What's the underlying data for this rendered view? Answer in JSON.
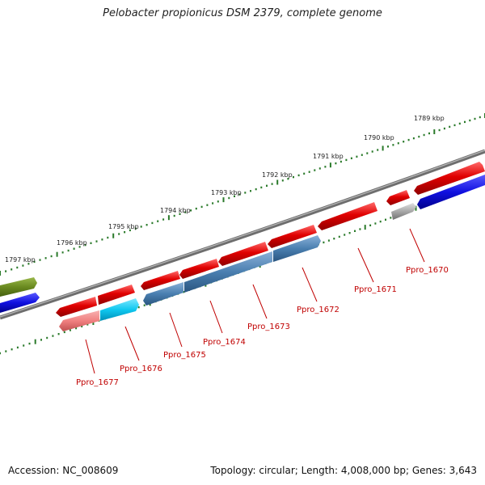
{
  "title": "Pelobacter propionicus DSM 2379, complete genome",
  "footer": {
    "accession": "Accession: NC_008609",
    "summary": "Topology: circular; Length: 4,008,000 bp; Genes: 3,643"
  },
  "colors": {
    "forward_gene": "#e00000",
    "forward_gene_pale": "#f08080",
    "reverse_dark_blue": "#1010e0",
    "reverse_steel": "#4a7fb0",
    "reverse_cyan": "#10c8f0",
    "olive": "#6a8a20",
    "gray": "#a8a8a8",
    "backbone": "#777777",
    "scale": "#2a7a2a",
    "label_red": "#c00000"
  },
  "scale_ticks": [
    {
      "label": "1797 kbp"
    },
    {
      "label": "1796 kbp"
    },
    {
      "label": "1795 kbp"
    },
    {
      "label": "1794 kbp"
    },
    {
      "label": "1793 kbp"
    },
    {
      "label": "1792 kbp"
    },
    {
      "label": "1791 kbp"
    },
    {
      "label": "1790 kbp"
    },
    {
      "label": "1789 kbp"
    }
  ],
  "gene_labels": [
    {
      "id": "Ppro_1677"
    },
    {
      "id": "Ppro_1676"
    },
    {
      "id": "Ppro_1675"
    },
    {
      "id": "Ppro_1674"
    },
    {
      "id": "Ppro_1673"
    },
    {
      "id": "Ppro_1672"
    },
    {
      "id": "Ppro_1671"
    },
    {
      "id": "Ppro_1670"
    }
  ]
}
